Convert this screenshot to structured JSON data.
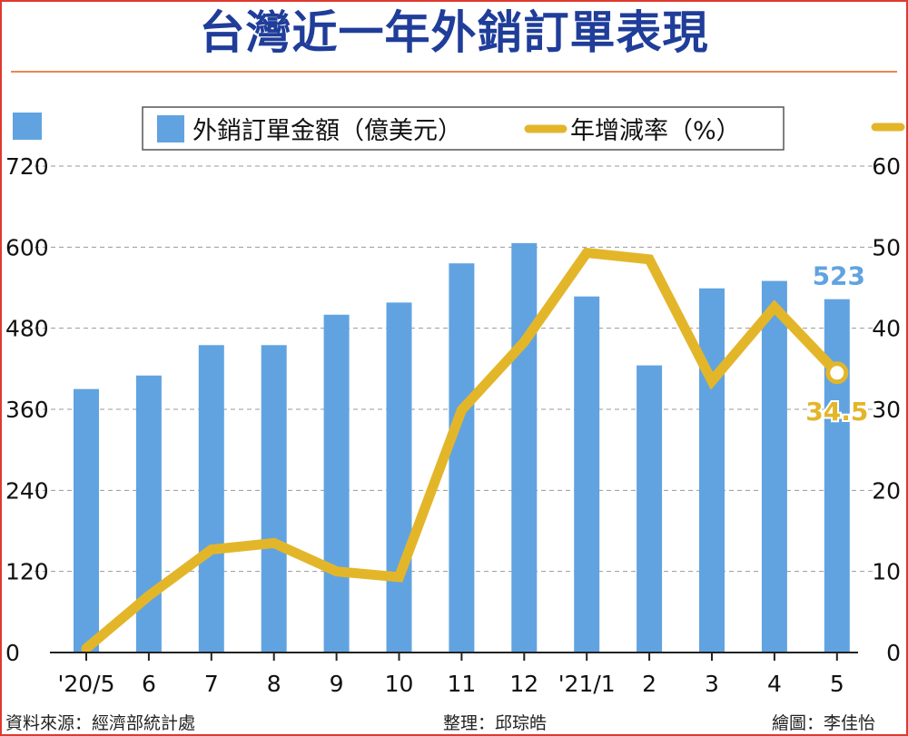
{
  "title": "台灣近一年外銷訂單表現",
  "legend": {
    "bar_label": "外銷訂單金額（億美元）",
    "line_label": "年增減率（%）"
  },
  "colors": {
    "bar": "#61a3e0",
    "line": "#e3b62a",
    "title": "#1f3d99",
    "frame": "#e03a2f",
    "rule": "#e9874f",
    "grid": "#9a9a9a"
  },
  "chart_data": {
    "type": "bar",
    "categories": [
      "'20/5",
      "6",
      "7",
      "8",
      "9",
      "10",
      "11",
      "12",
      "'21/1",
      "2",
      "3",
      "4",
      "5"
    ],
    "series": [
      {
        "name": "外銷訂單金額（億美元）",
        "type": "bar",
        "axis": "left",
        "values": [
          390,
          410,
          455,
          455,
          500,
          518,
          576,
          606,
          527,
          425,
          539,
          550,
          523
        ]
      },
      {
        "name": "年增減率（%）",
        "type": "line",
        "axis": "right",
        "values": [
          0.5,
          7,
          12.7,
          13.5,
          10,
          9.3,
          29.9,
          38.3,
          49.3,
          48.5,
          33.5,
          42.6,
          34.5
        ]
      }
    ],
    "y_left": {
      "ylim": [
        0,
        720
      ],
      "ticks": [
        0,
        120,
        240,
        360,
        480,
        600,
        720
      ]
    },
    "y_right": {
      "ylim": [
        0,
        60
      ],
      "ticks": [
        0,
        10,
        20,
        30,
        40,
        50,
        60
      ]
    },
    "annotations": [
      {
        "series": "外銷訂單金額（億美元）",
        "category": "5",
        "label": "523"
      },
      {
        "series": "年增減率（%）",
        "category": "5",
        "label": "34.5"
      }
    ],
    "grid": true,
    "legend_position": "top"
  },
  "footer": {
    "source": "資料來源：經濟部統計處",
    "editor": "整理：邱琮皓",
    "artist": "繪圖：李佳怡"
  }
}
